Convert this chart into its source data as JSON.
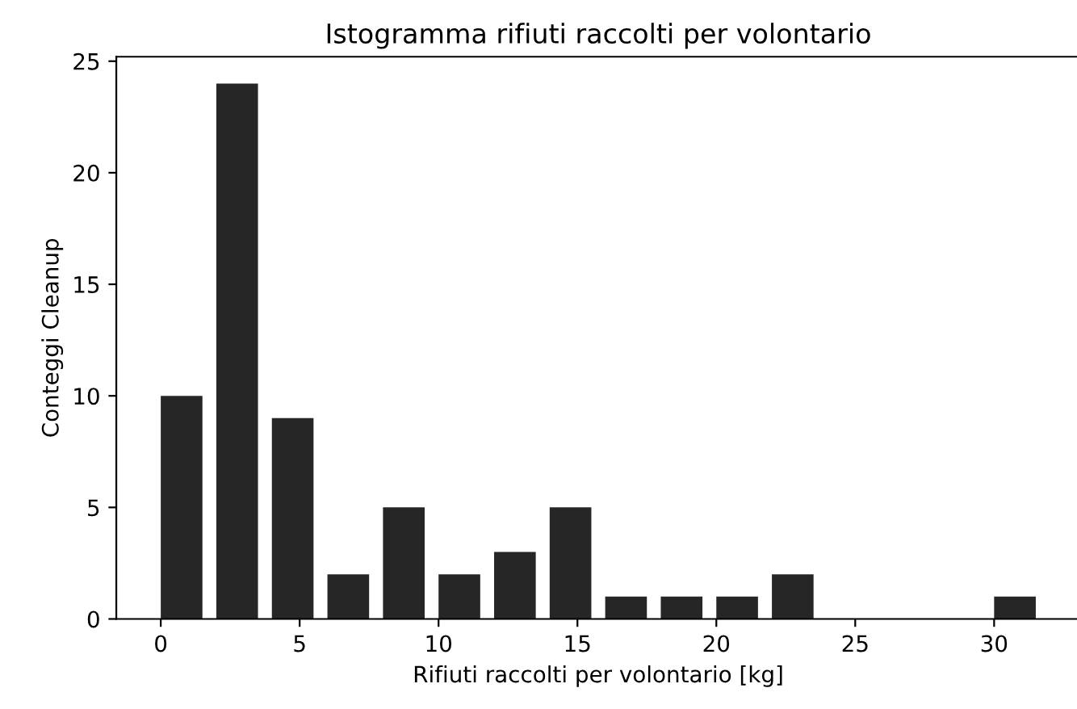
{
  "chart_data": {
    "type": "bar",
    "title": "Istogramma rifiuti raccolti per volontario",
    "xlabel": "Rifiuti raccolti per volontario [kg]",
    "ylabel": "Conteggi Cleanup",
    "x": [
      0.75,
      2.75,
      4.75,
      6.75,
      8.75,
      10.75,
      12.75,
      14.75,
      16.75,
      18.75,
      20.75,
      22.75,
      24.75,
      26.75,
      28.75,
      30.75
    ],
    "values": [
      10,
      24,
      9,
      2,
      5,
      2,
      3,
      5,
      1,
      1,
      1,
      2,
      0,
      0,
      0,
      1
    ],
    "color": "#262626",
    "xlim": [
      -1.6,
      33.1
    ],
    "xticks": [
      0,
      5,
      10,
      15,
      20,
      25,
      30
    ],
    "ylim": [
      0,
      25.2
    ],
    "yticks": [
      0,
      5,
      10,
      15,
      20,
      25
    ],
    "grid": false
  }
}
